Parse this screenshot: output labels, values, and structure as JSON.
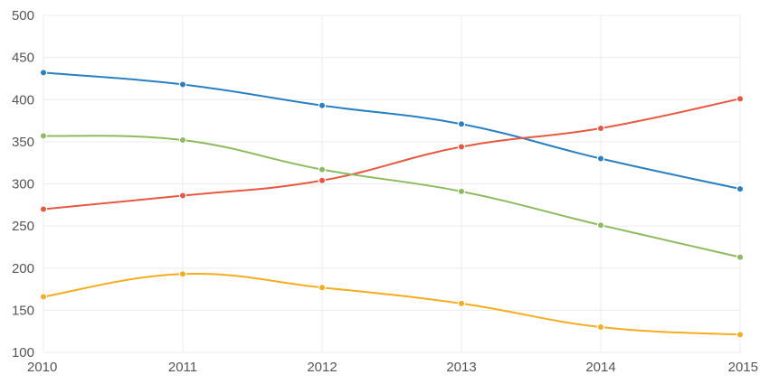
{
  "chart_data": {
    "type": "line",
    "x": [
      "2010",
      "2011",
      "2012",
      "2013",
      "2014",
      "2015"
    ],
    "ylim": [
      100,
      500
    ],
    "yticks": [
      100,
      150,
      200,
      250,
      300,
      350,
      400,
      450,
      500
    ],
    "grid": true,
    "smooth": true,
    "title": "",
    "xlabel": "",
    "ylabel": "",
    "series": [
      {
        "color": "#2a7fc1",
        "values": [
          432,
          418,
          393,
          371,
          330,
          294
        ]
      },
      {
        "color": "#e8573f",
        "values": [
          270,
          286,
          304,
          344,
          366,
          401
        ]
      },
      {
        "color": "#8cbb5e",
        "values": [
          357,
          352,
          317,
          291,
          251,
          213
        ]
      },
      {
        "color": "#f5ac1d",
        "values": [
          166,
          193,
          177,
          158,
          130,
          121
        ]
      }
    ]
  }
}
